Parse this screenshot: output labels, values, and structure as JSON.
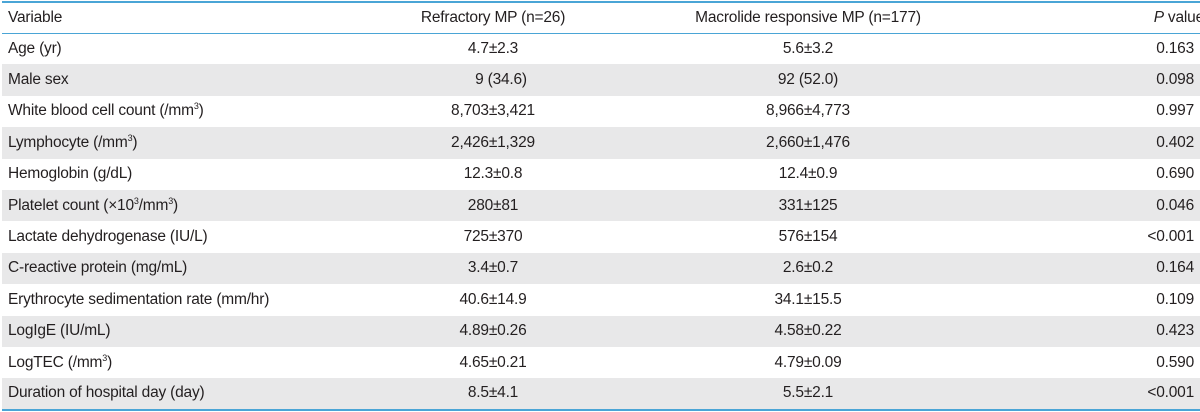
{
  "table": {
    "headers": {
      "variable": "Variable",
      "refractory": "Refractory MP (n=26)",
      "macrolide": "Macrolide responsive MP (n=177)",
      "p_italic": "P",
      "p_rest": " value"
    },
    "rows": [
      {
        "label": "Age (yr)",
        "refractory": "4.7±2.3",
        "macrolide": "5.6±3.2",
        "p": "0.163"
      },
      {
        "label": "Male sex",
        "refractory": "9 (34.6)",
        "macrolide": "92 (52.0)",
        "p": "0.098"
      },
      {
        "label_pre": "White blood cell count (/mm",
        "label_sup": "3",
        "label_post": ")",
        "refractory": "8,703±3,421",
        "macrolide": "8,966±4,773",
        "p": "0.997"
      },
      {
        "label_pre": "Lymphocyte (/mm",
        "label_sup": "3",
        "label_post": ")",
        "refractory": "2,426±1,329",
        "macrolide": "2,660±1,476",
        "p": "0.402"
      },
      {
        "label": "Hemoglobin (g/dL)",
        "refractory": "12.3±0.8",
        "macrolide": "12.4±0.9",
        "p": "0.690"
      },
      {
        "label_pre": "Platelet count (×10",
        "label_sup": "3",
        "label_mid": "/mm",
        "label_sup2": "3",
        "label_post": ")",
        "refractory": "280±81",
        "macrolide": "331±125",
        "p": "0.046"
      },
      {
        "label": "Lactate dehydrogenase (IU/L)",
        "refractory": "725±370",
        "macrolide": "576±154",
        "p": "<0.001"
      },
      {
        "label": "C-reactive protein (mg/mL)",
        "refractory": "3.4±0.7",
        "macrolide": "2.6±0.2",
        "p": "0.164"
      },
      {
        "label": "Erythrocyte sedimentation rate (mm/hr)",
        "refractory": "40.6±14.9",
        "macrolide": "34.1±15.5",
        "p": "0.109"
      },
      {
        "label": "LogIgE (IU/mL)",
        "refractory": "4.89±0.26",
        "macrolide": "4.58±0.22",
        "p": "0.423"
      },
      {
        "label_pre": "LogTEC (/mm",
        "label_sup": "3",
        "label_post": ")",
        "refractory": "4.65±0.21",
        "macrolide": "4.79±0.09",
        "p": "0.590"
      },
      {
        "label": "Duration of hospital day (day)",
        "refractory": "8.5±4.1",
        "macrolide": "5.5±2.1",
        "p": "<0.001"
      }
    ]
  },
  "colors": {
    "rule": "#4aa5d6",
    "zebra": "#e8e8e9",
    "text": "#231f20"
  }
}
